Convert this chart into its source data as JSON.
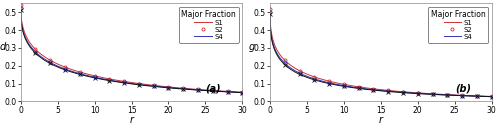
{
  "xlabel": "r",
  "ylabel_a": "d",
  "ylabel_b": "g",
  "label_a": "(a)",
  "label_b": "(b)",
  "legend_title": "Major Fraction",
  "series_labels": [
    "S1",
    "S2",
    "S4"
  ],
  "colors_a": [
    "#cc3333",
    "#3333bb",
    "#111111"
  ],
  "colors_b": [
    "#cc3333",
    "#3333bb",
    "#111111"
  ],
  "markers": [
    "o",
    "o",
    "x"
  ],
  "xlim": [
    0,
    30
  ],
  "ylim_a": [
    0.0,
    0.55
  ],
  "ylim_b": [
    0.0,
    0.55
  ],
  "yticks": [
    0.0,
    0.1,
    0.2,
    0.3,
    0.4,
    0.5
  ],
  "xticks": [
    0,
    5,
    10,
    15,
    20,
    25,
    30
  ],
  "background": "#ffffff",
  "figsize": [
    5.0,
    1.28
  ],
  "dpi": 100
}
